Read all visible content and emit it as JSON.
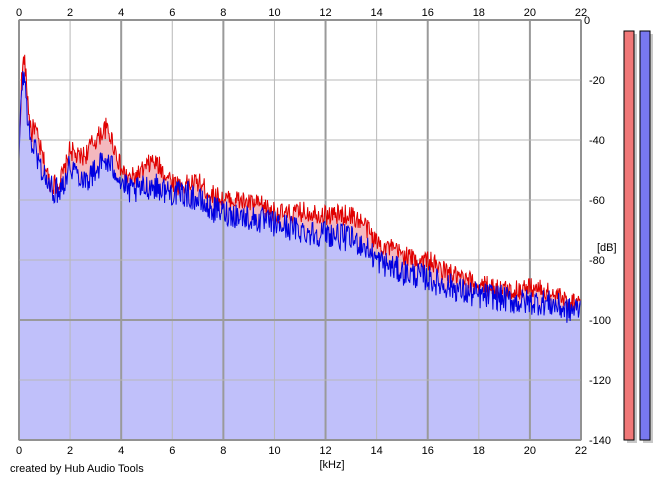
{
  "chart_data": {
    "type": "area",
    "xlabel": "[kHz]",
    "ylabel": "[dB]",
    "xlim": [
      0,
      22
    ],
    "ylim": [
      -140,
      0
    ],
    "x_ticks": [
      "0",
      "2",
      "4",
      "6",
      "8",
      "10",
      "12",
      "14",
      "16",
      "18",
      "20",
      "22"
    ],
    "y_ticks": [
      "0",
      "-20",
      "-40",
      "-60",
      "-80",
      "-100",
      "-120",
      "-140"
    ],
    "grid": true,
    "series": [
      {
        "color": "#e00000",
        "fill": "#f4b8be",
        "x": [
          0,
          0.1,
          0.2,
          0.3,
          0.4,
          0.5,
          0.6,
          0.8,
          1.0,
          1.2,
          1.5,
          1.8,
          2.0,
          2.3,
          2.6,
          2.8,
          3.0,
          3.2,
          3.4,
          3.6,
          3.8,
          4.0,
          4.3,
          4.6,
          4.9,
          5.2,
          5.5,
          5.8,
          6.2,
          6.6,
          7.0,
          7.5,
          8.0,
          8.5,
          9.0,
          9.5,
          10.0,
          10.5,
          11.0,
          11.5,
          12.0,
          12.5,
          13.0,
          13.5,
          14.0,
          14.5,
          15.0,
          15.5,
          16.0,
          16.5,
          17.0,
          17.5,
          18.0,
          18.5,
          19.0,
          19.5,
          20.0,
          20.5,
          21.0,
          21.5,
          22.0
        ],
        "y": [
          -45,
          -20,
          -12,
          -22,
          -32,
          -38,
          -35,
          -42,
          -48,
          -54,
          -55,
          -50,
          -43,
          -46,
          -45,
          -42,
          -40,
          -38,
          -36,
          -39,
          -44,
          -50,
          -53,
          -52,
          -50,
          -47,
          -49,
          -52,
          -55,
          -55,
          -54,
          -58,
          -60,
          -60,
          -61,
          -62,
          -64,
          -65,
          -64,
          -64,
          -65,
          -65,
          -65,
          -68,
          -74,
          -76,
          -78,
          -80,
          -80,
          -83,
          -85,
          -87,
          -88,
          -89,
          -90,
          -90,
          -89,
          -90,
          -92,
          -94,
          -93
        ]
      },
      {
        "color": "#0000e0",
        "fill": "#c0c0fa",
        "x": [
          0,
          0.1,
          0.2,
          0.3,
          0.4,
          0.5,
          0.6,
          0.8,
          1.0,
          1.2,
          1.5,
          1.8,
          2.0,
          2.3,
          2.6,
          2.8,
          3.0,
          3.2,
          3.4,
          3.6,
          3.8,
          4.0,
          4.3,
          4.6,
          4.9,
          5.2,
          5.5,
          5.8,
          6.2,
          6.6,
          7.0,
          7.5,
          8.0,
          8.5,
          9.0,
          9.5,
          10.0,
          10.5,
          11.0,
          11.5,
          12.0,
          12.5,
          13.0,
          13.5,
          14.0,
          14.5,
          15.0,
          15.5,
          16.0,
          16.5,
          17.0,
          17.5,
          18.0,
          18.5,
          19.0,
          19.5,
          20.0,
          20.5,
          21.0,
          21.5,
          22.0
        ],
        "y": [
          -48,
          -22,
          -18,
          -28,
          -38,
          -42,
          -42,
          -48,
          -52,
          -56,
          -57,
          -53,
          -48,
          -51,
          -53,
          -52,
          -50,
          -48,
          -47,
          -49,
          -50,
          -54,
          -57,
          -57,
          -56,
          -55,
          -56,
          -57,
          -58,
          -58,
          -60,
          -63,
          -64,
          -65,
          -66,
          -67,
          -68,
          -69,
          -70,
          -71,
          -71,
          -72,
          -73,
          -75,
          -80,
          -82,
          -84,
          -85,
          -86,
          -88,
          -89,
          -91,
          -92,
          -92,
          -93,
          -94,
          -94,
          -94,
          -95,
          -97,
          -96
        ]
      }
    ],
    "level_meters": [
      {
        "color": "#f07878",
        "level": 1.0
      },
      {
        "color": "#7878f0",
        "level": 1.0
      }
    ]
  },
  "footer": {
    "credit": "created by Hub Audio Tools"
  }
}
